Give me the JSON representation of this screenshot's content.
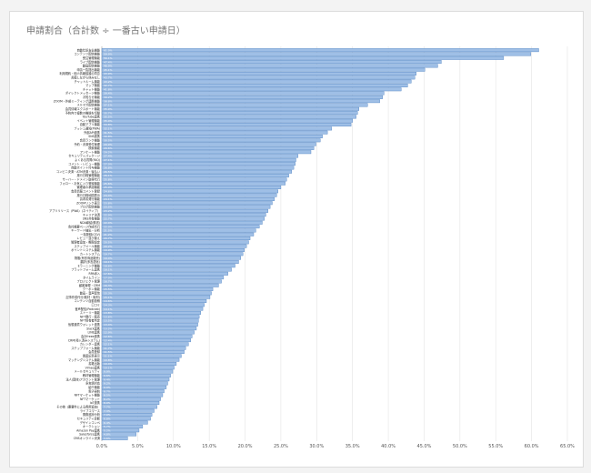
{
  "chart_data": {
    "type": "bar",
    "orientation": "horizontal",
    "title": "申請割合（合計数 ÷ 一番古い申請日）",
    "xlabel": "",
    "ylabel": "",
    "xlim": [
      0,
      0.65
    ],
    "x_ticks": [
      "0.0%",
      "5.0%",
      "10.0%",
      "15.0%",
      "20.0%",
      "25.0%",
      "30.0%",
      "35.0%",
      "40.0%",
      "45.0%",
      "50.0%",
      "55.0%",
      "60.0%",
      "65.0%"
    ],
    "grid": true,
    "bar_color": "#9fbfe6",
    "bar_border_color": "#4a7fc0",
    "categories": [
      "自動仕訳支払機能",
      "コンテンツ配信機能",
      "受注管理機能",
      "ライブ配信機能",
      "動画配信機能",
      "申請一覧提出機能",
      "利用規約・個人情報保護の同意",
      "書類しながら休みなし",
      "チャットルーム機能",
      "マップ機能",
      "チャット機能",
      "ダイレクトメッセージ機能",
      "お知らせ機能",
      "ZOOM・外部ミーティング連携機能",
      "メルマガ配信機能",
      "会員情報エクスポート機能",
      "予約内で複数の機能を切替",
      "YouTube連携",
      "イベント管理機能",
      "自動アプリ機能",
      "プッシュ通知(PWA)",
      "外部API連携",
      "SNS連携",
      "会員ランク機能",
      "予約・決済受付管理",
      "検索機能",
      "アンケート機能",
      "セキュリティパッケージ",
      "よくある質問(FAQ)",
      "コメント・レビュー機能",
      "自動ポイント付与機能",
      "コンビニ決済・ATM決済・後払い",
      "旅行日程管理機能",
      "サーバー・ドメイン取得代行",
      "フォロー・お気に入り登録機能",
      "管理者の承認機能",
      "会員情報コメント登録",
      "旅行日程地図表示",
      "請求書発行機能",
      "ZOOMリンク表示",
      "ブログ配信機能",
      "アプリリリース（PWA）（ネイティブ）",
      "キャリア決済",
      "SNS共有機能",
      "NDA締結(郵送)",
      "会社概要ページ作成代行",
      "キーワード抽出・分析",
      "一括登録(CSV)",
      "レビュー並び替え",
      "管理者追加・権限設定",
      "ステップメール機能",
      "ポイントシステム機能",
      "カートシステム",
      "物販(有形商品販売)",
      "翻訳(多言語化)",
      "Eラーニング機能",
      "プラットフォーム連携",
      "RPA導入",
      "タイムライン",
      "プロジェクト管理",
      "顧客管理・CRM",
      "クーポン機能",
      "動画・音声配信",
      "記事作成代行(取材・取材)",
      "コンテンツ自動投稿",
      "口コミ",
      "音声配信(Podcast)",
      "ストーリー機能",
      "NFT発行・販売",
      "NFT保有者判定",
      "仮想通貨ウォレット連携",
      "Slack連携",
      "LINE連携",
      "会計freee連携",
      "CRM(導入済みシステム)",
      "カレンダー連携",
      "ステップフォーム機能",
      "会員登録",
      "関連記事表示",
      "マッチングシステム機能",
      "書籍出版",
      "Vimeo連携",
      "メールセキュリティ",
      "教材管理機能",
      "法人(団体)アカウント管理",
      "多言語対応",
      "紹介機能",
      "電子契約",
      "NFTマーケット機能",
      "NFTマーケット",
      "IoT連携",
      "その他（要要件による費用追加）",
      "ライブコマース",
      "業務進捗分析",
      "セキュリティ診断",
      "デザインコンペ",
      "オークション",
      "Amazon Pay連携",
      "Salesforce連携",
      "CMSオンライン決済"
    ],
    "values": [
      61.0,
      59.9,
      56.1,
      47.4,
      46.9,
      45.1,
      43.9,
      43.7,
      43.2,
      42.7,
      41.8,
      39.4,
      39.2,
      38.8,
      37.1,
      35.9,
      35.7,
      35.5,
      35.0,
      34.8,
      32.1,
      31.5,
      30.8,
      30.5,
      29.9,
      29.6,
      29.2,
      27.4,
      27.1,
      27.0,
      26.8,
      26.5,
      26.1,
      25.8,
      25.6,
      25.0,
      24.6,
      24.4,
      24.1,
      23.8,
      23.5,
      23.2,
      22.9,
      22.7,
      22.4,
      22.0,
      21.5,
      21.2,
      20.7,
      20.5,
      20.2,
      19.9,
      19.7,
      19.4,
      19.1,
      18.6,
      18.1,
      17.6,
      17.0,
      16.7,
      16.3,
      15.5,
      15.3,
      15.1,
      14.6,
      14.3,
      14.1,
      13.8,
      13.6,
      13.5,
      13.4,
      13.2,
      12.9,
      12.6,
      12.4,
      12.1,
      11.7,
      11.5,
      11.1,
      10.8,
      10.4,
      10.1,
      9.9,
      9.6,
      9.4,
      9.2,
      9.0,
      8.7,
      8.5,
      8.2,
      8.0,
      7.7,
      7.3,
      7.0,
      6.8,
      6.4,
      5.7,
      5.2,
      4.8,
      3.6
    ]
  }
}
